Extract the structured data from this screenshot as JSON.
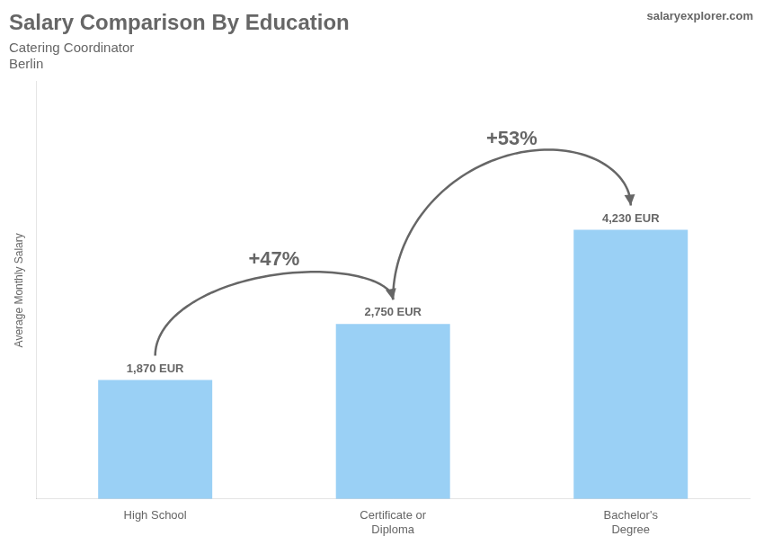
{
  "chart_data": {
    "type": "bar",
    "title": "Salary Comparison By Education",
    "subtitle": [
      "Catering Coordinator",
      "Berlin"
    ],
    "y_label": "Average Monthly Salary",
    "categories": [
      "High School",
      "Certificate or\nDiploma",
      "Bachelor's\nDegree"
    ],
    "values": [
      1870,
      2750,
      4230
    ],
    "value_labels": [
      "1,870 EUR",
      "2,750 EUR",
      "4,230 EUR"
    ],
    "data_labels": true,
    "arrows": [
      "+47%",
      "+53%"
    ],
    "annotations": [
      "salaryexplorer.com"
    ],
    "ylim": [
      0,
      6556.5
    ],
    "tick_labels": "x",
    "grid": false
  }
}
